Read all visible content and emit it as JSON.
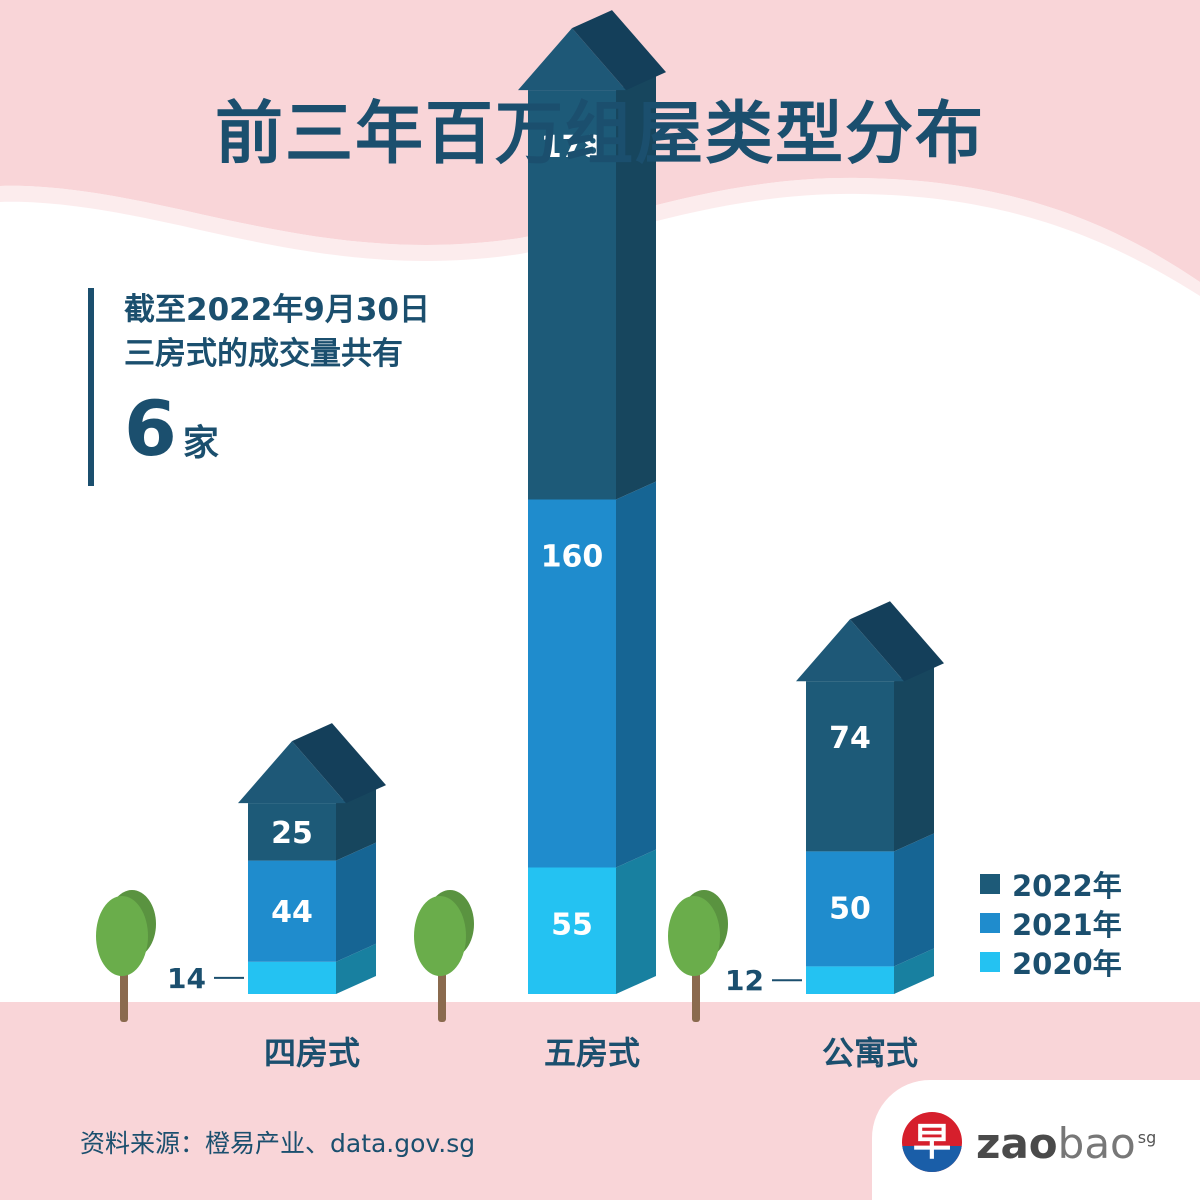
{
  "title": "前三年百万组屋类型分布",
  "note": {
    "line1": "截至2022年9月30日",
    "line2": "三房式的成交量共有",
    "value": "6",
    "unit": "家"
  },
  "chart_data": {
    "type": "bar",
    "stacked": true,
    "categories": [
      "四房式",
      "五房式",
      "公寓式"
    ],
    "series": [
      {
        "name": "2022年",
        "values": [
          25,
          178,
          74
        ],
        "color": "#1d5a78"
      },
      {
        "name": "2021年",
        "values": [
          44,
          160,
          50
        ],
        "color": "#1f8ccd"
      },
      {
        "name": "2020年",
        "values": [
          14,
          55,
          12
        ],
        "color": "#24c2f2"
      }
    ],
    "data_labels": [
      [
        "25",
        "178",
        "74"
      ],
      [
        "44",
        "160",
        "50"
      ],
      [
        "14",
        "55",
        "12"
      ]
    ],
    "legend": "right",
    "grid": false
  },
  "legend": [
    {
      "label": "2022年",
      "color": "#1d5a78"
    },
    {
      "label": "2021年",
      "color": "#1f8ccd"
    },
    {
      "label": "2020年",
      "color": "#24c2f2"
    }
  ],
  "source": "资料来源：橙易产业、data.gov.sg",
  "brand": {
    "logo_glyph": "早",
    "name_bold": "zao",
    "name_light": "bao",
    "suffix": "sg"
  },
  "colors": {
    "title": "#1b4f6e",
    "header_bg": "#f9d5d8",
    "ground": "#f9d5d8",
    "roof_dark": "#143f5a",
    "roof_light": "#1e5877",
    "tree_leaf": "#6aad4b",
    "tree_trunk": "#8a6a4e"
  }
}
